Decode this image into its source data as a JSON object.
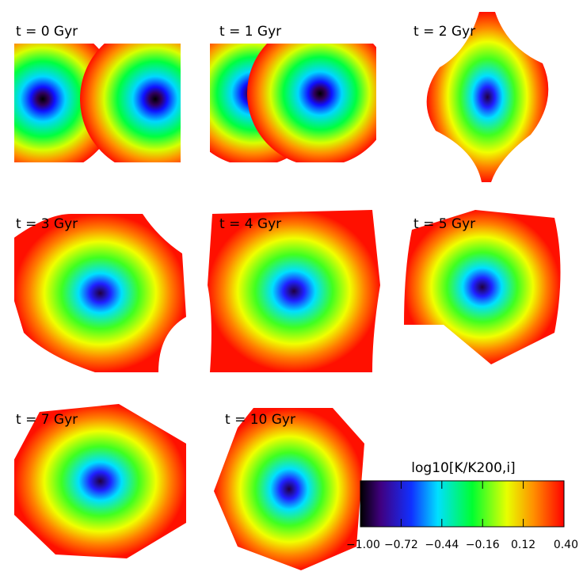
{
  "panels": [
    {
      "label": "t = 0 Gyr"
    },
    {
      "label": "t = 1 Gyr"
    },
    {
      "label": "t = 2 Gyr"
    },
    {
      "label": "t = 3 Gyr"
    },
    {
      "label": "t = 4 Gyr"
    },
    {
      "label": "t = 5 Gyr"
    },
    {
      "label": "t = 7 Gyr"
    },
    {
      "label": "t = 10 Gyr"
    }
  ],
  "colorbar": {
    "title": "log10[K/K200,i]",
    "lim": [
      -1.0,
      0.4
    ],
    "ticks": [
      {
        "value": -1.0,
        "label": "−1.00"
      },
      {
        "value": -0.72,
        "label": "−0.72"
      },
      {
        "value": -0.44,
        "label": "−0.44"
      },
      {
        "value": -0.16,
        "label": "−0.16"
      },
      {
        "value": 0.12,
        "label": "0.12"
      },
      {
        "value": 0.4,
        "label": "0.40"
      }
    ]
  }
}
